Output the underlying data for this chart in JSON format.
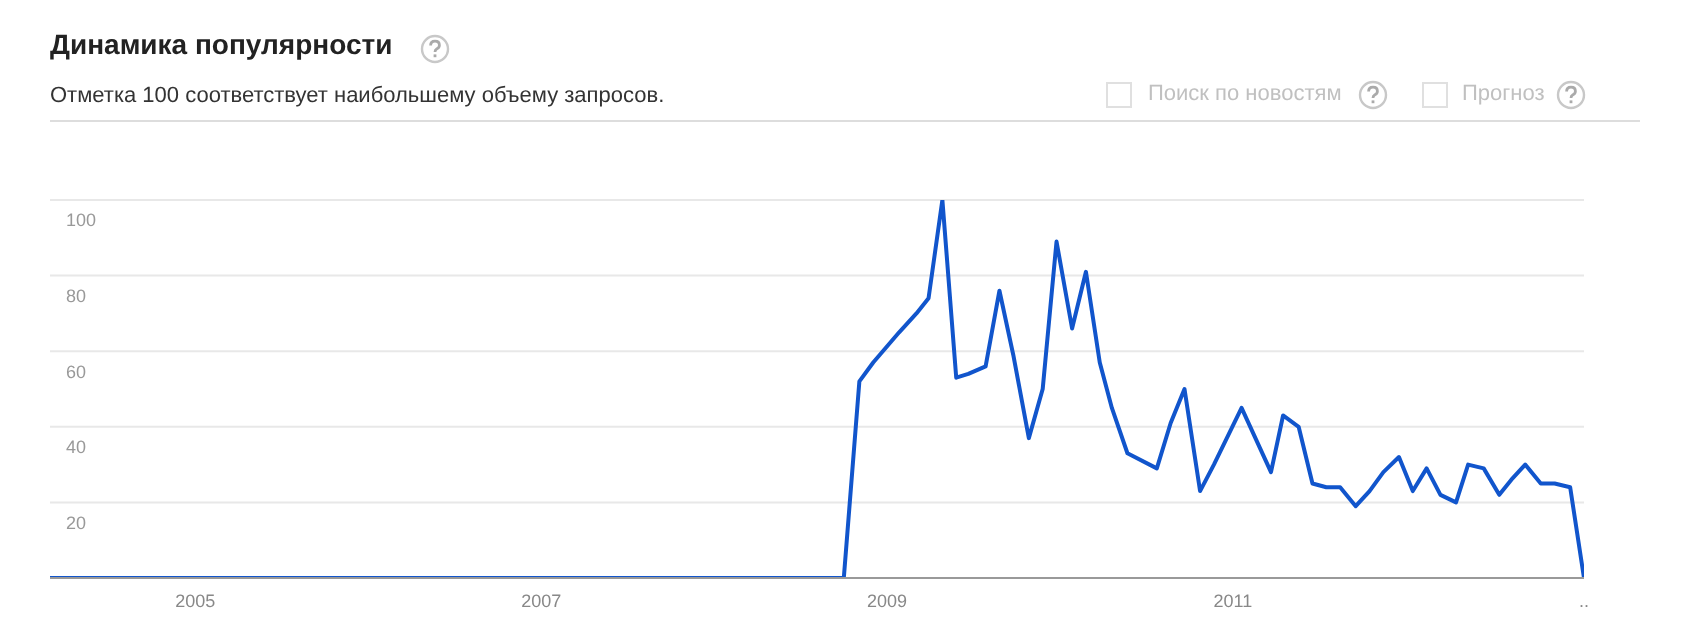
{
  "chart_data": {
    "type": "line",
    "title": "Динамика популярности",
    "subtitle": "Отметка 100 соответствует наибольшему объему запросов.",
    "annotations": [
      "Поиск по новостям",
      "Прогноз"
    ],
    "x": [
      2004.16,
      2008.75,
      2008.84,
      2008.92,
      2009.07,
      2009.17,
      2009.24,
      2009.32,
      2009.4,
      2009.47,
      2009.57,
      2009.65,
      2009.73,
      2009.82,
      2009.9,
      2009.98,
      2010.07,
      2010.15,
      2010.23,
      2010.3,
      2010.39,
      2010.56,
      2010.64,
      2010.72,
      2010.81,
      2010.89,
      2011.05,
      2011.22,
      2011.29,
      2011.38,
      2011.46,
      2011.54,
      2011.62,
      2011.71,
      2011.79,
      2011.87,
      2011.96,
      2012.04,
      2012.12,
      2012.2,
      2012.29,
      2012.36,
      2012.45,
      2012.54,
      2012.61,
      2012.69,
      2012.78,
      2012.86,
      2012.95,
      2013.03
    ],
    "series": [
      {
        "color": "#1155cc",
        "values": [
          0,
          0,
          52,
          57,
          65,
          70,
          74,
          100,
          53,
          54,
          56,
          76,
          59,
          37,
          50,
          89,
          66,
          81,
          57,
          45,
          33,
          29,
          41,
          50,
          23,
          30,
          45,
          28,
          43,
          40,
          25,
          24,
          24,
          19,
          23,
          28,
          32,
          23,
          29,
          22,
          20,
          30,
          29,
          22,
          26,
          30,
          25,
          25,
          24,
          0
        ]
      }
    ],
    "xlim": [
      2004.16,
      2013.03
    ],
    "xticks": [
      2005,
      2007,
      2009,
      2011,
      {
        "value": 2013.03,
        "label": ".."
      }
    ],
    "ylim": [
      0,
      100
    ],
    "yticks": [
      20,
      40,
      60,
      80,
      100
    ],
    "grid": "y",
    "legend": false,
    "marker": "none",
    "line_style": "solid"
  }
}
